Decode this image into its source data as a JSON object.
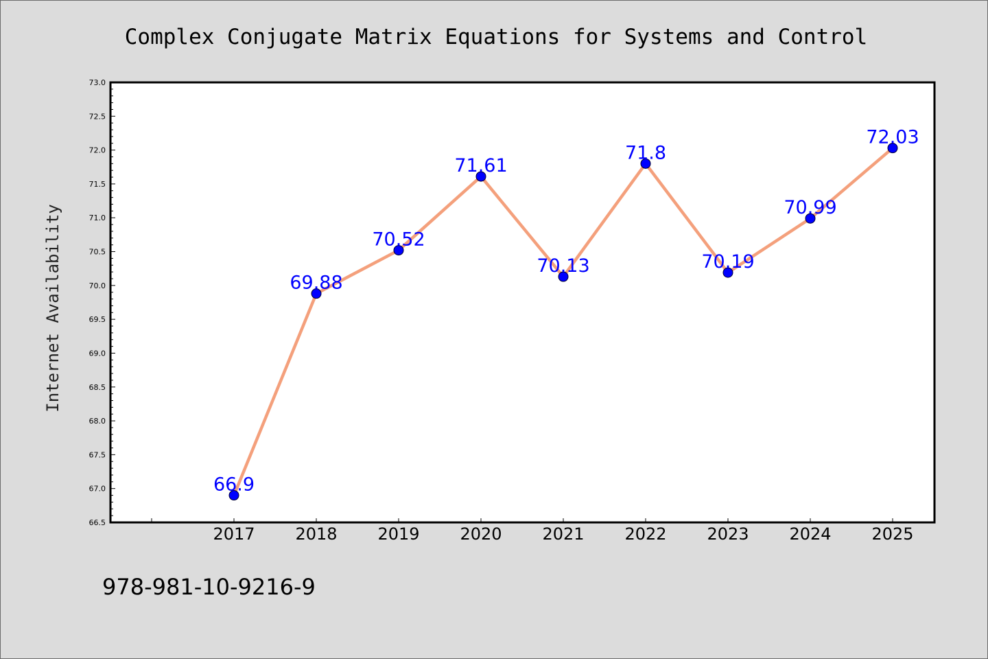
{
  "chart_data": {
    "type": "line",
    "title": "Complex Conjugate Matrix Equations for Systems and Control",
    "xlabel": "",
    "ylabel": "Internet Availability",
    "x": [
      "2017",
      "2018",
      "2019",
      "2020",
      "2021",
      "2022",
      "2023",
      "2024",
      "2025"
    ],
    "series": [
      {
        "values": [
          66.9,
          69.88,
          70.52,
          71.61,
          70.13,
          71.8,
          70.19,
          70.99,
          72.03
        ],
        "data_labels": [
          "66.9",
          "69.88",
          "70.52",
          "71.61",
          "70.13",
          "71.8",
          "70.19",
          "70.99",
          "72.03"
        ]
      }
    ],
    "ylim": [
      66.5,
      73.0
    ],
    "yticks": [
      "66.5",
      "67.0",
      "67.5",
      "68.0",
      "68.5",
      "69.0",
      "69.5",
      "70.0",
      "70.5",
      "71.0",
      "71.5",
      "72.0",
      "72.5",
      "73.0"
    ],
    "grid": false,
    "legend": "none",
    "colors": {
      "line": "#f4a07c",
      "marker": "#0000ff",
      "data_label": "#0000ff",
      "plot_background": "#ffffff",
      "figure_background": "#dcdcdc"
    },
    "annotation": "978-981-10-9216-9"
  }
}
